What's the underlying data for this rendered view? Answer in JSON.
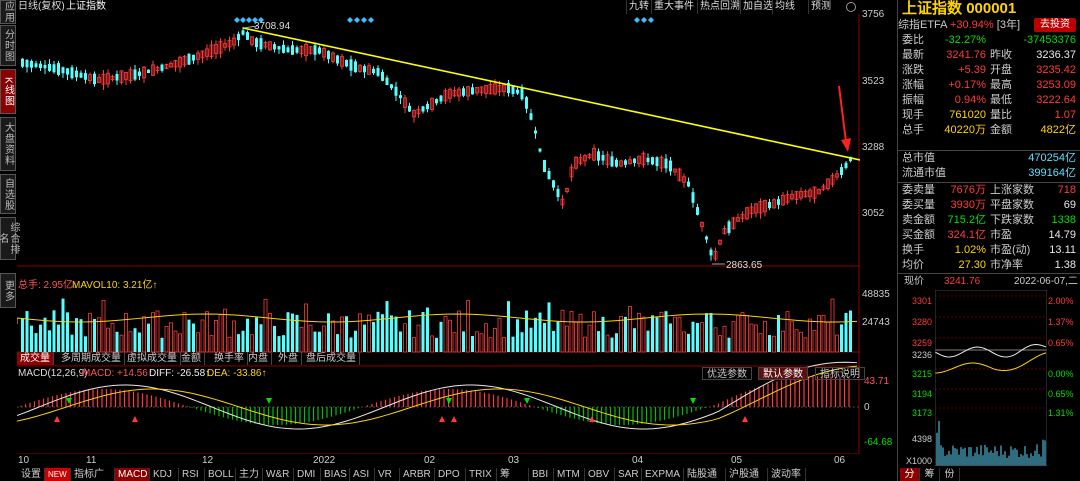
{
  "sidebar": {
    "items": [
      "应用",
      "分时图",
      "K线图",
      "大盘资料",
      "自选股",
      "综合排名",
      "更多"
    ]
  },
  "header": {
    "period": "日线(复权)",
    "title": "上证指数"
  },
  "toolbar": {
    "items": [
      "九转",
      "重大事件",
      "热点回溯",
      "加自选",
      "均线",
      "预测"
    ]
  },
  "price_axis": {
    "labels": [
      "3756",
      "3523",
      "3288",
      "3052"
    ]
  },
  "chart": {
    "high_label": "3708.94",
    "low_label": "2863.65"
  },
  "volume": {
    "legend_total": "总手: 2.95亿↓",
    "legend_ma": "MAVOL10: 3.21亿↑",
    "axis": [
      "48835",
      "24743"
    ]
  },
  "vol_tabs": [
    "成交量",
    "多周期成交量",
    "虚拟成交量",
    "金额",
    "换手率",
    "内盘",
    "外盘",
    "盘后成交量"
  ],
  "macd": {
    "title": "MACD(12,26,9)",
    "macd": "MACD: +14.56↑",
    "diff": "DIFF: -26.58↑",
    "dea": "DEA: -33.86↑",
    "axis": [
      "43.71",
      "0",
      "-64.68"
    ]
  },
  "macd_tabs": [
    "优选参数",
    "默认参数",
    "指标说明"
  ],
  "date_axis": [
    "10",
    "11",
    "12",
    "2022",
    "02",
    "03",
    "04",
    "05",
    "06"
  ],
  "bottom_tabs": [
    "设置",
    "NEW",
    "指标广场",
    "MACD",
    "KDJ",
    "RSI",
    "BOLL",
    "主力",
    "W&R",
    "DMI",
    "BIAS",
    "ASI",
    "VR",
    "ARBR",
    "DPO",
    "TRIX",
    "筹DMA",
    "BBI",
    "MTM",
    "OBV",
    "SAR",
    "EXPMA",
    "陆股通",
    "沪股通",
    "波动率"
  ],
  "quote": {
    "name": "上证指数",
    "code": "000001",
    "etf_label": "综指ETFA",
    "etf_change": "+30.94%",
    "etf_period": "[3年]",
    "etf_button": "去投资",
    "rows": [
      {
        "l1": "委比",
        "v1": "-32.27%",
        "l2": "",
        "v2": "-37453376"
      },
      {
        "l1": "最新",
        "v1": "3241.76",
        "l2": "昨收",
        "v2": "3236.37"
      },
      {
        "l1": "涨跌",
        "v1": "+5.39",
        "l2": "开盘",
        "v2": "3235.42"
      },
      {
        "l1": "涨幅",
        "v1": "+0.17%",
        "l2": "最高",
        "v2": "3253.09"
      },
      {
        "l1": "振幅",
        "v1": "0.94%",
        "l2": "最低",
        "v2": "3222.64"
      },
      {
        "l1": "现手",
        "v1": "761020",
        "l2": "量比",
        "v2": "1.07"
      },
      {
        "l1": "总手",
        "v1": "40220万",
        "l2": "金额",
        "v2": "4822亿"
      }
    ],
    "mkt_total_label": "总市值",
    "mkt_total": "470254亿",
    "mkt_float_label": "流通市值",
    "mkt_float": "399164亿",
    "rows2": [
      {
        "l1": "委卖量",
        "v1": "7676万",
        "l2": "上涨家数",
        "v2": "718"
      },
      {
        "l1": "委买量",
        "v1": "3930万",
        "l2": "平盘家数",
        "v2": "69"
      },
      {
        "l1": "卖金额",
        "v1": "715.2亿",
        "l2": "下跌家数",
        "v2": "1338"
      },
      {
        "l1": "买金额",
        "v1": "324.1亿",
        "l2": "市盈",
        "v2": "14.79"
      },
      {
        "l1": "换手",
        "v1": "1.02%",
        "l2": "市盈(动)",
        "v2": "13.11"
      },
      {
        "l1": "均价",
        "v1": "27.30",
        "l2": "市净率",
        "v2": "1.38"
      }
    ],
    "now_label": "现价",
    "now_price": "3241.76",
    "now_date": "2022-06-07,二"
  },
  "mini": {
    "left_axis": [
      "3301",
      "3280",
      "3259",
      "3236",
      "3215",
      "3194",
      "3173"
    ],
    "right_axis": [
      "2.00%",
      "1.37%",
      "0.65%",
      "0.00%",
      "0.65%",
      "1.31%"
    ],
    "vol_axis": [
      "4398",
      "X1000"
    ],
    "tabs": [
      "分",
      "筹",
      "份"
    ]
  },
  "colors": {
    "up": "#ff3b3b",
    "down": "#54ffff",
    "trend": "#ffff00",
    "bg": "#000000"
  }
}
